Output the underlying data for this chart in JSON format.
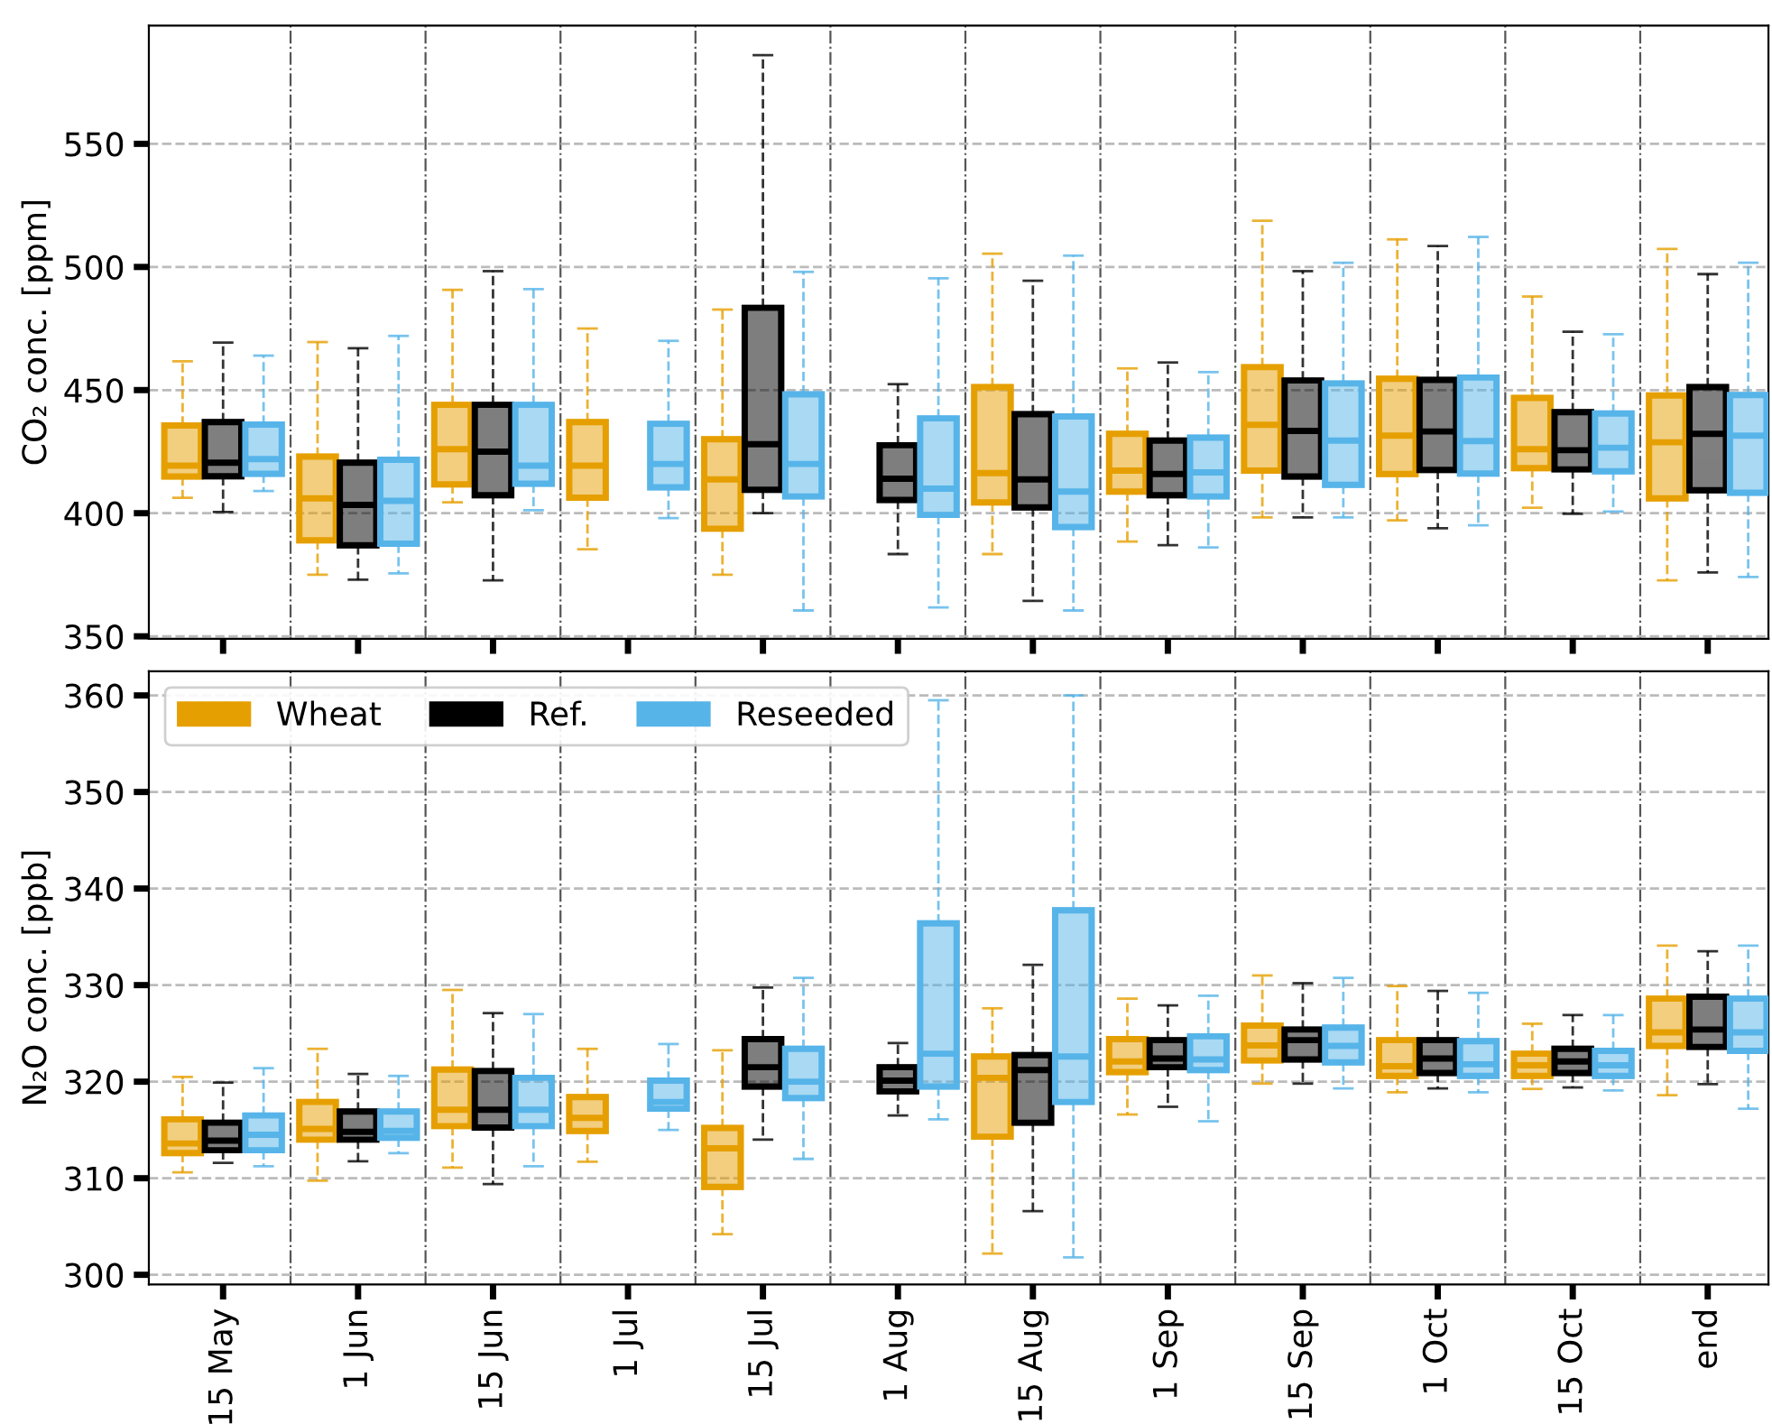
{
  "chart_data": [
    {
      "type": "box",
      "ylabel": "CO₂ conc. [ppm]",
      "categories": [
        null,
        null,
        null,
        null,
        null,
        null,
        null,
        null,
        null,
        null,
        null,
        null
      ],
      "ylim": [
        349,
        598
      ],
      "yticks": [
        350,
        400,
        450,
        500,
        550
      ],
      "grid": true,
      "legend": false,
      "tick_labels": "y",
      "line_style": "dashed",
      "series": [
        {
          "color": "#e69f00",
          "boxes": [
            {
              "low": 406.3,
              "q1": 414.9,
              "median": 419.3,
              "q3": 435.6,
              "high": 461.7
            },
            {
              "low": 375,
              "q1": 389,
              "median": 406,
              "q3": 423,
              "high": 469.5
            },
            {
              "low": 404.4,
              "q1": 411.7,
              "median": 426,
              "q3": 444,
              "high": 490.7
            },
            {
              "low": 385.4,
              "q1": 406.3,
              "median": 419.3,
              "q3": 437,
              "high": 475
            },
            {
              "low": 375,
              "q1": 393.7,
              "median": 413.7,
              "q3": 430,
              "high": 482.7
            },
            null,
            {
              "low": 383.4,
              "q1": 404.4,
              "median": 416.3,
              "q3": 451.2,
              "high": 505.4
            },
            {
              "low": 388.5,
              "q1": 408.8,
              "median": 417.3,
              "q3": 432.2,
              "high": 458.8
            },
            {
              "low": 398.3,
              "q1": 417.3,
              "median": 435.9,
              "q3": 459.3,
              "high": 518.8
            },
            {
              "low": 397.1,
              "q1": 415.9,
              "median": 431.5,
              "q3": 454.6,
              "high": 511.2
            },
            {
              "low": 402.2,
              "q1": 418.3,
              "median": 426,
              "q3": 446.8,
              "high": 488
            },
            {
              "low": 372.7,
              "q1": 406,
              "median": 428.8,
              "q3": 447.8,
              "high": 507.3
            }
          ]
        },
        {
          "color": "#000000",
          "boxes": [
            {
              "low": 400.5,
              "q1": 415,
              "median": 420.5,
              "q3": 437,
              "high": 469.3
            },
            {
              "low": 373,
              "q1": 387,
              "median": 403.4,
              "q3": 420.5,
              "high": 467
            },
            {
              "low": 372.7,
              "q1": 407.3,
              "median": 425,
              "q3": 444,
              "high": 498.3
            },
            null,
            {
              "low": 400,
              "q1": 409.5,
              "median": 428,
              "q3": 483.4,
              "high": 586
            },
            {
              "low": 383.4,
              "q1": 405.4,
              "median": 414,
              "q3": 427.6,
              "high": 452.4
            },
            {
              "low": 364.4,
              "q1": 402.4,
              "median": 413.7,
              "q3": 440.2,
              "high": 494.4
            },
            {
              "low": 387,
              "q1": 407.3,
              "median": 415.9,
              "q3": 429.5,
              "high": 461.2
            },
            {
              "low": 398.3,
              "q1": 414.9,
              "median": 433.4,
              "q3": 453.9,
              "high": 498.3
            },
            {
              "low": 393.9,
              "q1": 417.6,
              "median": 433.2,
              "q3": 454.1,
              "high": 508.5
            },
            {
              "low": 399.8,
              "q1": 417.8,
              "median": 425.6,
              "q3": 441,
              "high": 473.7
            },
            {
              "low": 375.9,
              "q1": 409.3,
              "median": 432.2,
              "q3": 451.2,
              "high": 497.1
            }
          ]
        },
        {
          "color": "#56b4e9",
          "boxes": [
            {
              "low": 409,
              "q1": 416,
              "median": 422,
              "q3": 436,
              "high": 464
            },
            {
              "low": 375.6,
              "q1": 387.6,
              "median": 405,
              "q3": 421.7,
              "high": 472
            },
            {
              "low": 401.2,
              "q1": 412,
              "median": 419.3,
              "q3": 444,
              "high": 491
            },
            {
              "low": 398,
              "q1": 410.5,
              "median": 420,
              "q3": 436.3,
              "high": 470
            },
            {
              "low": 360.5,
              "q1": 406.8,
              "median": 420,
              "q3": 448.3,
              "high": 498
            },
            {
              "low": 361.7,
              "q1": 399.3,
              "median": 410,
              "q3": 438.5,
              "high": 495.4
            },
            {
              "low": 360.5,
              "q1": 394.4,
              "median": 408.8,
              "q3": 439.3,
              "high": 504.6
            },
            {
              "low": 386.1,
              "q1": 406.8,
              "median": 416.6,
              "q3": 430.7,
              "high": 457.3
            },
            {
              "low": 398.3,
              "q1": 411.5,
              "median": 429.5,
              "q3": 452.7,
              "high": 501.7
            },
            {
              "low": 395.1,
              "q1": 416.1,
              "median": 429.3,
              "q3": 455.1,
              "high": 512.2
            },
            {
              "low": 400.7,
              "q1": 417,
              "median": 426.6,
              "q3": 440.5,
              "high": 472.7
            },
            {
              "low": 374.1,
              "q1": 408.3,
              "median": 431.5,
              "q3": 448,
              "high": 501.7
            }
          ]
        }
      ]
    },
    {
      "type": "box",
      "ylabel": "N₂O conc. [ppb]",
      "categories": [
        "15 May",
        "1 Jun",
        "15 Jun",
        "1 Jul",
        "15 Jul",
        "1 Aug",
        "15 Aug",
        "1 Sep",
        "15 Sep",
        "1 Oct",
        "15 Oct",
        "end"
      ],
      "ylim": [
        299,
        362.5
      ],
      "yticks": [
        300,
        310,
        320,
        330,
        340,
        350,
        360
      ],
      "grid": true,
      "legend": "top left",
      "line_style": "dashed",
      "series": [
        {
          "name": "Wheat",
          "color": "#e69f00",
          "boxes": [
            {
              "low": 310.6,
              "q1": 312.6,
              "median": 313.6,
              "q3": 316.1,
              "high": 320.5
            },
            {
              "low": 309.75,
              "q1": 314,
              "median": 315.1,
              "q3": 317.9,
              "high": 323.4
            },
            {
              "low": 311.1,
              "q1": 315.4,
              "median": 317.1,
              "q3": 321.25,
              "high": 329.5
            },
            {
              "low": 311.7,
              "q1": 314.9,
              "median": 316.25,
              "q3": 318.4,
              "high": 323.4
            },
            {
              "low": 304.2,
              "q1": 309.1,
              "median": 313.1,
              "q3": 315.2,
              "high": 323.25
            },
            null,
            {
              "low": 302.2,
              "q1": 314.3,
              "median": 320.4,
              "q3": 322.6,
              "high": 327.6
            },
            {
              "low": 316.6,
              "q1": 321,
              "median": 322.1,
              "q3": 324.4,
              "high": 328.6
            },
            {
              "low": 319.8,
              "q1": 322.2,
              "median": 323.75,
              "q3": 325.8,
              "high": 331
            },
            {
              "low": 318.9,
              "q1": 320.6,
              "median": 321.6,
              "q3": 324.3,
              "high": 329.9
            },
            {
              "low": 319.25,
              "q1": 320.6,
              "median": 321.7,
              "q3": 322.9,
              "high": 326
            },
            {
              "low": 318.6,
              "q1": 323.7,
              "median": 325.1,
              "q3": 328.6,
              "high": 334.1
            }
          ]
        },
        {
          "name": "Ref.",
          "color": "#000000",
          "boxes": [
            {
              "low": 311.6,
              "q1": 312.9,
              "median": 313.9,
              "q3": 315.75,
              "high": 319.9
            },
            {
              "low": 311.75,
              "q1": 314,
              "median": 314.8,
              "q3": 316.9,
              "high": 320.8
            },
            {
              "low": 309.4,
              "q1": 315.25,
              "median": 317.1,
              "q3": 321.1,
              "high": 327.1
            },
            null,
            {
              "low": 314,
              "q1": 319.5,
              "median": 321.5,
              "q3": 324.4,
              "high": 329.75
            },
            {
              "low": 316.5,
              "q1": 319,
              "median": 320.1,
              "q3": 321.5,
              "high": 324
            },
            {
              "low": 306.6,
              "q1": 315.75,
              "median": 321.2,
              "q3": 322.75,
              "high": 332.1
            },
            {
              "low": 317.4,
              "q1": 321.5,
              "median": 322.4,
              "q3": 324.3,
              "high": 327.9
            },
            {
              "low": 319.8,
              "q1": 322.3,
              "median": 324.3,
              "q3": 325.4,
              "high": 330.2
            },
            {
              "low": 319.3,
              "q1": 320.9,
              "median": 322.4,
              "q3": 324.3,
              "high": 329.4
            },
            {
              "low": 319.4,
              "q1": 320.9,
              "median": 322.1,
              "q3": 323.4,
              "high": 326.9
            },
            {
              "low": 319.75,
              "q1": 323.6,
              "median": 325.4,
              "q3": 328.8,
              "high": 333.5
            }
          ]
        },
        {
          "name": "Reseeded",
          "color": "#56b4e9",
          "boxes": [
            {
              "low": 311.25,
              "q1": 312.9,
              "median": 314.5,
              "q3": 316.5,
              "high": 321.4
            },
            {
              "low": 312.6,
              "q1": 314.2,
              "median": 314.9,
              "q3": 316.9,
              "high": 320.6
            },
            {
              "low": 311.25,
              "q1": 315.4,
              "median": 317.1,
              "q3": 320.4,
              "high": 327
            },
            {
              "low": 315,
              "q1": 317.2,
              "median": 317.9,
              "q3": 320.1,
              "high": 323.9
            },
            {
              "low": 312,
              "q1": 318.3,
              "median": 320,
              "q3": 323.4,
              "high": 330.75
            },
            {
              "low": 316.1,
              "q1": 319.5,
              "median": 322.9,
              "q3": 336.4,
              "high": 359.5
            },
            {
              "low": 301.8,
              "q1": 317.9,
              "median": 322.6,
              "q3": 337.75,
              "high": 360
            },
            {
              "low": 315.9,
              "q1": 321.2,
              "median": 322.3,
              "q3": 324.7,
              "high": 328.9
            },
            {
              "low": 319.3,
              "q1": 322,
              "median": 323.7,
              "q3": 325.6,
              "high": 330.75
            },
            {
              "low": 318.9,
              "q1": 320.6,
              "median": 321.8,
              "q3": 324.2,
              "high": 329.2
            },
            {
              "low": 319.1,
              "q1": 320.6,
              "median": 321.7,
              "q3": 323.2,
              "high": 326.9
            },
            {
              "low": 317.2,
              "q1": 323.2,
              "median": 325.1,
              "q3": 328.6,
              "high": 334.1
            }
          ]
        }
      ]
    }
  ]
}
